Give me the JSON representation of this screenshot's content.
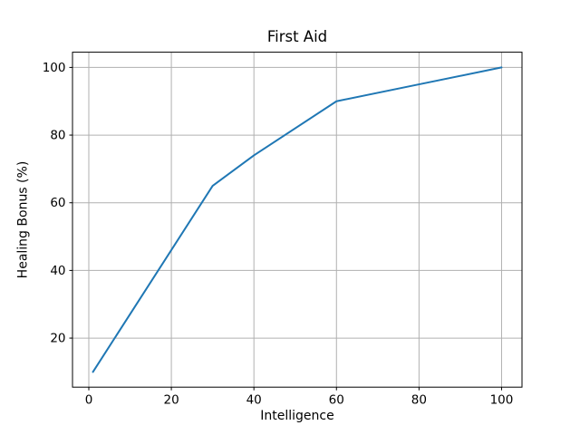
{
  "chart_data": {
    "type": "line",
    "title": "First Aid",
    "xlabel": "Intelligence",
    "ylabel": "Healing Bonus (%)",
    "x": [
      1,
      30,
      40,
      60,
      80,
      100
    ],
    "y": [
      10,
      65,
      74,
      90,
      95,
      100
    ],
    "xlim": [
      -3.95,
      104.95
    ],
    "ylim": [
      5.5,
      104.5
    ],
    "xticks": [
      0,
      20,
      40,
      60,
      80,
      100
    ],
    "yticks": [
      20,
      40,
      60,
      80,
      100
    ],
    "grid": true,
    "legend": null,
    "colors": {
      "line": "#1f77b4",
      "grid": "#b0b0b0",
      "spine": "#000000",
      "tick": "#000000",
      "text": "#000000",
      "background": "#ffffff"
    }
  }
}
